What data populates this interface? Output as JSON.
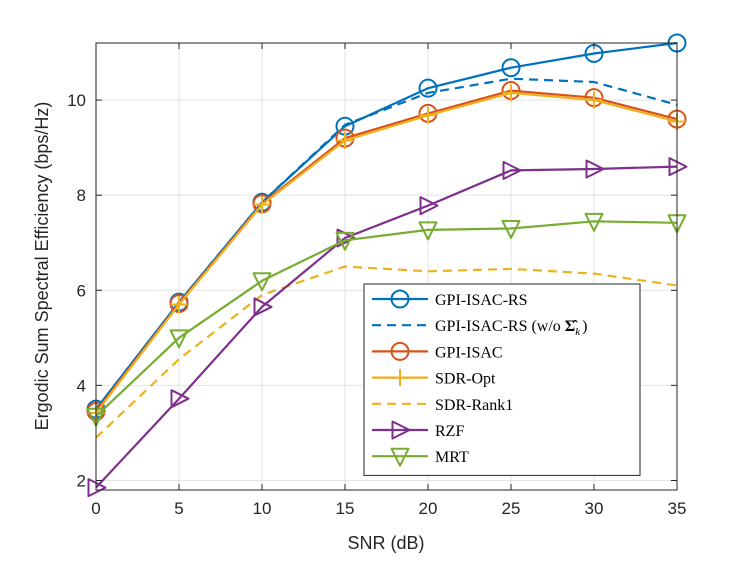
{
  "chart_data": {
    "type": "line",
    "title": "",
    "xlabel": "SNR (dB)",
    "ylabel": "Ergodic Sum Spectral Efficiency (bps/Hz)",
    "xlim": [
      0,
      35
    ],
    "ylim": [
      1.8,
      11.2
    ],
    "xticks": [
      0,
      5,
      10,
      15,
      20,
      25,
      30,
      35
    ],
    "yticks": [
      2,
      4,
      6,
      8,
      10
    ],
    "grid": true,
    "legend_position": "bottom-right",
    "x": [
      0,
      5,
      10,
      15,
      20,
      25,
      30,
      35
    ],
    "series": [
      {
        "name": "GPI-ISAC-RS",
        "color": "#0072BD",
        "dash": "solid",
        "marker": "circle",
        "values": [
          3.5,
          5.75,
          7.85,
          9.45,
          10.25,
          10.68,
          10.98,
          11.2
        ]
      },
      {
        "name": "GPI-ISAC-RS (w/o Σ̂k)",
        "legend_main": "GPI-ISAC-RS (w/o ",
        "legend_symbol": "Σ̂",
        "legend_sub": "k",
        "legend_close": ")",
        "color": "#0072BD",
        "dash": "dashed",
        "marker": "none",
        "values": [
          3.5,
          5.75,
          7.85,
          9.48,
          10.15,
          10.45,
          10.38,
          9.9
        ]
      },
      {
        "name": "GPI-ISAC",
        "color": "#D95319",
        "dash": "solid",
        "marker": "circle",
        "values": [
          3.45,
          5.72,
          7.82,
          9.2,
          9.72,
          10.2,
          10.05,
          9.6
        ]
      },
      {
        "name": "SDR-Opt",
        "color": "#EDB120",
        "dash": "solid",
        "marker": "plus",
        "values": [
          3.42,
          5.7,
          7.8,
          9.15,
          9.68,
          10.15,
          10.0,
          9.55
        ]
      },
      {
        "name": "SDR-Rank1",
        "color": "#EDB120",
        "dash": "dashed",
        "marker": "none",
        "values": [
          2.9,
          4.55,
          5.9,
          6.5,
          6.4,
          6.45,
          6.35,
          6.1
        ]
      },
      {
        "name": "RZF",
        "color": "#7E2F8E",
        "dash": "solid",
        "marker": "triangle-right",
        "values": [
          1.85,
          3.72,
          5.65,
          7.1,
          7.78,
          8.52,
          8.55,
          8.6
        ]
      },
      {
        "name": "MRT",
        "color": "#77AC30",
        "dash": "solid",
        "marker": "triangle-down",
        "values": [
          3.35,
          5.0,
          6.2,
          7.05,
          7.27,
          7.3,
          7.45,
          7.42
        ]
      }
    ]
  }
}
